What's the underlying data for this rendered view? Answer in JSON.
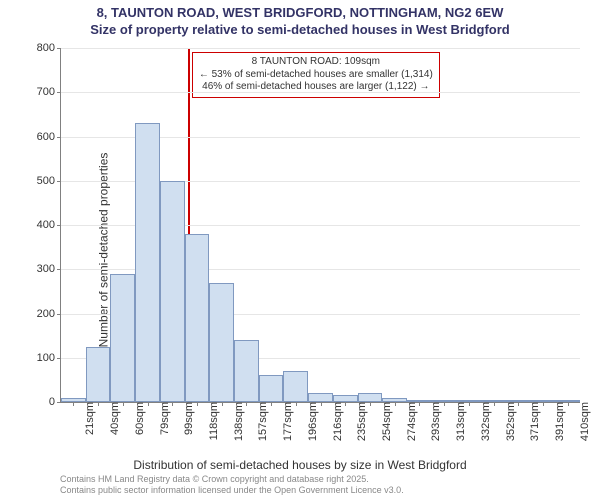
{
  "chart": {
    "type": "histogram",
    "title_line1": "8, TAUNTON ROAD, WEST BRIDGFORD, NOTTINGHAM, NG2 6EW",
    "title_line2": "Size of property relative to semi-detached houses in West Bridgford",
    "y_axis_label": "Number of semi-detached properties",
    "x_axis_label": "Distribution of semi-detached houses by size in West Bridgford",
    "ylim": [
      0,
      800
    ],
    "ytick_step": 100,
    "background_color": "#ffffff",
    "grid_color": "#e6e6e6",
    "axis_color": "#808080",
    "bar_fill": "#d0dff0",
    "bar_stroke": "#8099c0",
    "marker_color": "#cc0000",
    "title_color": "#333366",
    "text_color": "#333333",
    "footer_color": "#888888",
    "title_fontsize": 13,
    "axis_label_fontsize": 12,
    "tick_fontsize": 11,
    "annotation_fontsize": 10,
    "footer_fontsize": 9,
    "categories": [
      "21sqm",
      "40sqm",
      "60sqm",
      "79sqm",
      "99sqm",
      "118sqm",
      "138sqm",
      "157sqm",
      "177sqm",
      "196sqm",
      "216sqm",
      "235sqm",
      "254sqm",
      "274sqm",
      "293sqm",
      "313sqm",
      "332sqm",
      "352sqm",
      "371sqm",
      "391sqm",
      "410sqm"
    ],
    "values": [
      10,
      125,
      290,
      630,
      500,
      380,
      270,
      140,
      60,
      70,
      20,
      15,
      20,
      8,
      5,
      3,
      2,
      1,
      1,
      1,
      1
    ],
    "marker_position_sqm": 109,
    "annotation": {
      "line1": "8 TAUNTON ROAD: 109sqm",
      "line2": "← 53% of semi-detached houses are smaller (1,314)",
      "line3": "46% of semi-detached houses are larger (1,122) →"
    },
    "footer_line1": "Contains HM Land Registry data © Crown copyright and database right 2025.",
    "footer_line2": "Contains public sector information licensed under the Open Government Licence v3.0."
  }
}
